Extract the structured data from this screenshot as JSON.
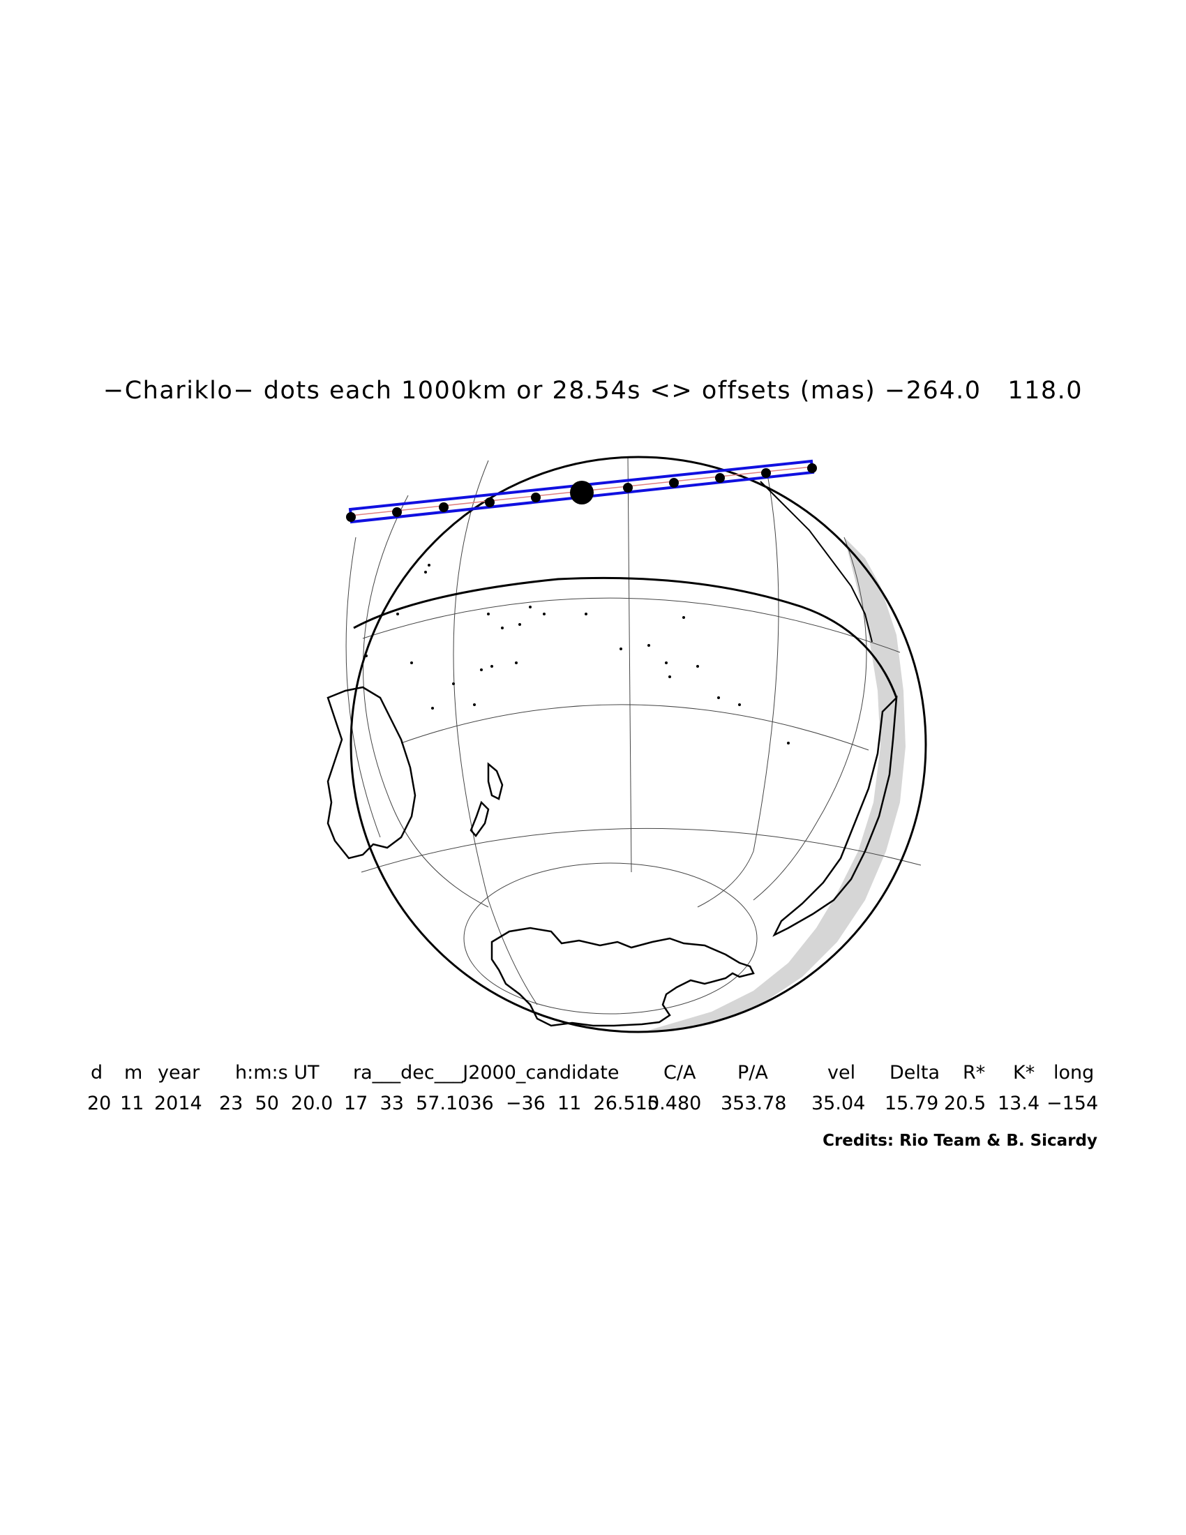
{
  "title": "−Chariklo− dots each 1000km or 28.54s <> offsets (mas) −264.0   118.0",
  "table": {
    "headers": [
      "d",
      "m",
      "year",
      "h:m:s UT",
      "ra___dec___J2000_candidate",
      "C/A",
      "P/A",
      "vel",
      "Delta",
      "R*",
      "K*",
      "long"
    ],
    "values": [
      "20",
      "11",
      "2014",
      "23  50  20.0",
      "17  33  57.1036  −36  11  26.515",
      "0.480",
      "353.78",
      "35.04",
      "15.79",
      "20.5",
      "13.4",
      "−154"
    ]
  },
  "credits": "Credits: Rio Team & B. Sicardy",
  "colors": {
    "track": "#1010e0",
    "night_shading": "#d6d6d6",
    "ink": "#000000"
  }
}
